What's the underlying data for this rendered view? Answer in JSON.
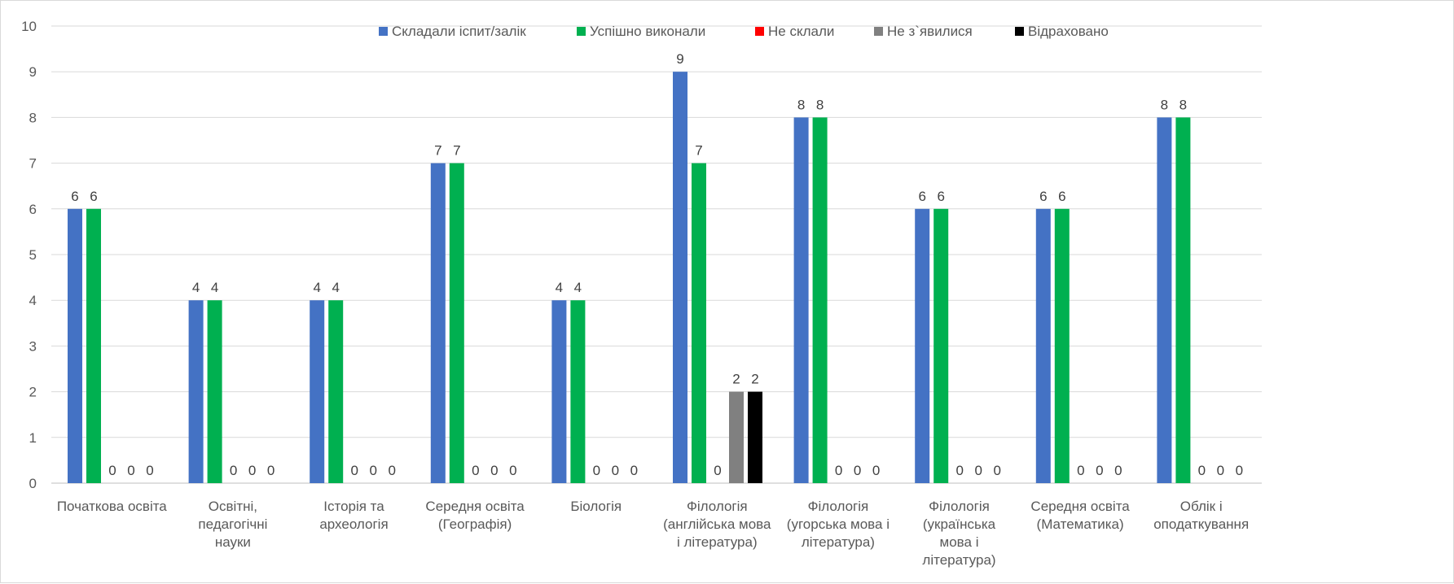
{
  "chart_data": {
    "type": "bar",
    "title": "",
    "xlabel": "",
    "ylabel": "",
    "ylim": [
      0,
      10
    ],
    "yticks": [
      "0",
      "1",
      "2",
      "3",
      "4",
      "5",
      "6",
      "7",
      "8",
      "9",
      "10"
    ],
    "grid": true,
    "legend_position": "top",
    "categories": [
      [
        "Початкова освіта"
      ],
      [
        "Освітні,",
        "педагогічні",
        "науки"
      ],
      [
        "Історія та",
        "археологія"
      ],
      [
        "Середня освіта",
        "(Географія)"
      ],
      [
        "Біологія"
      ],
      [
        "Філологія",
        "(англійська мова",
        "і література)"
      ],
      [
        "Філологія",
        "(угорська мова і",
        "література)"
      ],
      [
        "Філологія",
        "(українська",
        "мова і",
        "література)"
      ],
      [
        "Середня освіта",
        "(Математика)"
      ],
      [
        "Облік і",
        "оподаткування"
      ]
    ],
    "series": [
      {
        "name": "Складали іспит/залік",
        "color": "#4472c4",
        "values": [
          6,
          4,
          4,
          7,
          4,
          9,
          8,
          6,
          6,
          8
        ],
        "labels": [
          "6",
          "4",
          "4",
          "7",
          "4",
          "9",
          "8",
          "6",
          "6",
          "8"
        ]
      },
      {
        "name": "Успішно виконали",
        "color": "#00b050",
        "values": [
          6,
          4,
          4,
          7,
          4,
          7,
          8,
          6,
          6,
          8
        ],
        "labels": [
          "6",
          "4",
          "4",
          "7",
          "4",
          "7",
          "8",
          "6",
          "6",
          "8"
        ]
      },
      {
        "name": "Не склали",
        "color": "#ff0000",
        "values": [
          0,
          0,
          0,
          0,
          0,
          0,
          0,
          0,
          0,
          0
        ],
        "labels": [
          "0",
          "0",
          "0",
          "0",
          "0",
          "0",
          "0",
          "0",
          "0",
          "0"
        ]
      },
      {
        "name": "Не з`явилися",
        "color": "#808080",
        "values": [
          0,
          0,
          0,
          0,
          0,
          2,
          0,
          0,
          0,
          0
        ],
        "labels": [
          "0",
          "0",
          "0",
          "0",
          "0",
          "2",
          "0",
          "0",
          "0",
          "0"
        ]
      },
      {
        "name": "Відраховано",
        "color": "#000000",
        "values": [
          0,
          0,
          0,
          0,
          0,
          2,
          0,
          0,
          0,
          0
        ],
        "labels": [
          "0",
          "0",
          "0",
          "0",
          "0",
          "2",
          "0",
          "0",
          "0",
          "0"
        ]
      }
    ]
  }
}
